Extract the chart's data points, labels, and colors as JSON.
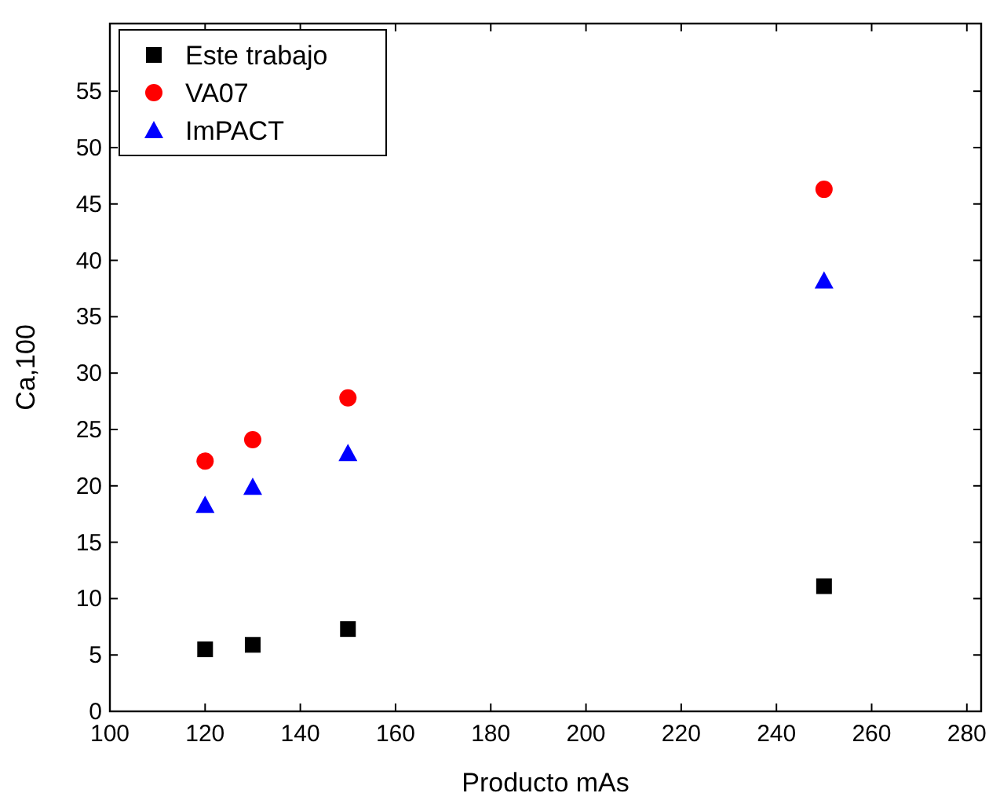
{
  "chart_data": {
    "type": "scatter",
    "xlabel": "Producto mAs",
    "ylabel": "Ca,100",
    "x": [
      120,
      130,
      150,
      250
    ],
    "xlim": [
      100,
      283
    ],
    "xticks": [
      100,
      120,
      140,
      160,
      180,
      200,
      220,
      240,
      260,
      280
    ],
    "ylim": [
      0,
      61
    ],
    "yticks": [
      0,
      5,
      10,
      15,
      20,
      25,
      30,
      35,
      40,
      45,
      50,
      55
    ],
    "grid": false,
    "legend": "top left",
    "series": [
      {
        "name": "Este trabajo",
        "color": "#000000",
        "marker": "square",
        "values": [
          5.5,
          5.9,
          7.3,
          11.1
        ]
      },
      {
        "name": "VA07",
        "color": "#ff0000",
        "marker": "circle",
        "values": [
          22.2,
          24.1,
          27.8,
          46.3
        ]
      },
      {
        "name": "ImPACT",
        "color": "#0000ff",
        "marker": "triangle",
        "values": [
          18.3,
          19.9,
          22.9,
          38.2
        ]
      }
    ]
  }
}
